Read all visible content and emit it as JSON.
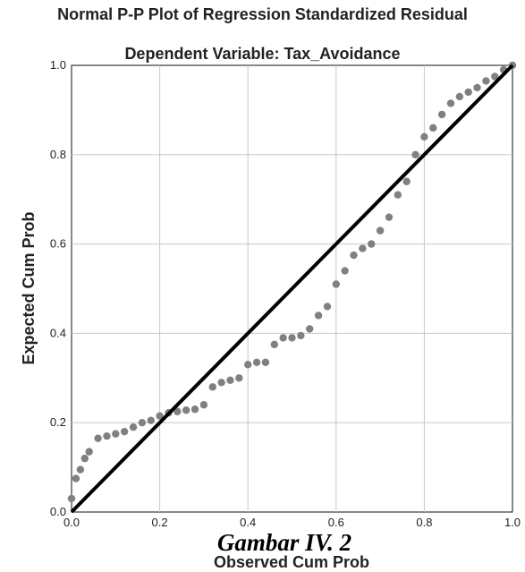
{
  "chart_data": {
    "type": "scatter",
    "title": "Normal P-P Plot of Regression Standardized Residual",
    "subtitle": "Dependent Variable: Tax_Avoidance",
    "xlabel": "Observed Cum Prob",
    "ylabel": "Expected Cum Prob",
    "xlim": [
      0,
      1
    ],
    "ylim": [
      0,
      1
    ],
    "xticks": [
      "0.0",
      "0.2",
      "0.4",
      "0.6",
      "0.8",
      "1.0"
    ],
    "yticks": [
      "0.0",
      "0.2",
      "0.4",
      "0.6",
      "0.8",
      "1.0"
    ],
    "grid": true,
    "reference_line": [
      [
        0,
        0
      ],
      [
        1,
        1
      ]
    ],
    "point_color": "#808080",
    "line_color": "#000000",
    "points": [
      [
        0.0,
        0.03
      ],
      [
        0.01,
        0.075
      ],
      [
        0.02,
        0.095
      ],
      [
        0.03,
        0.12
      ],
      [
        0.04,
        0.135
      ],
      [
        0.06,
        0.165
      ],
      [
        0.08,
        0.17
      ],
      [
        0.1,
        0.175
      ],
      [
        0.12,
        0.18
      ],
      [
        0.14,
        0.19
      ],
      [
        0.16,
        0.2
      ],
      [
        0.18,
        0.205
      ],
      [
        0.2,
        0.215
      ],
      [
        0.22,
        0.222
      ],
      [
        0.24,
        0.225
      ],
      [
        0.26,
        0.228
      ],
      [
        0.28,
        0.23
      ],
      [
        0.3,
        0.24
      ],
      [
        0.32,
        0.28
      ],
      [
        0.34,
        0.29
      ],
      [
        0.36,
        0.295
      ],
      [
        0.38,
        0.3
      ],
      [
        0.4,
        0.33
      ],
      [
        0.42,
        0.335
      ],
      [
        0.44,
        0.335
      ],
      [
        0.46,
        0.375
      ],
      [
        0.48,
        0.39
      ],
      [
        0.5,
        0.39
      ],
      [
        0.52,
        0.395
      ],
      [
        0.54,
        0.41
      ],
      [
        0.56,
        0.44
      ],
      [
        0.58,
        0.46
      ],
      [
        0.6,
        0.51
      ],
      [
        0.62,
        0.54
      ],
      [
        0.64,
        0.575
      ],
      [
        0.66,
        0.59
      ],
      [
        0.68,
        0.6
      ],
      [
        0.7,
        0.63
      ],
      [
        0.72,
        0.66
      ],
      [
        0.74,
        0.71
      ],
      [
        0.76,
        0.74
      ],
      [
        0.78,
        0.8
      ],
      [
        0.8,
        0.84
      ],
      [
        0.82,
        0.86
      ],
      [
        0.84,
        0.89
      ],
      [
        0.86,
        0.915
      ],
      [
        0.88,
        0.93
      ],
      [
        0.9,
        0.94
      ],
      [
        0.92,
        0.95
      ],
      [
        0.94,
        0.965
      ],
      [
        0.96,
        0.975
      ],
      [
        0.98,
        0.99
      ],
      [
        1.0,
        1.0
      ]
    ]
  },
  "caption": "Gambar IV. 2"
}
